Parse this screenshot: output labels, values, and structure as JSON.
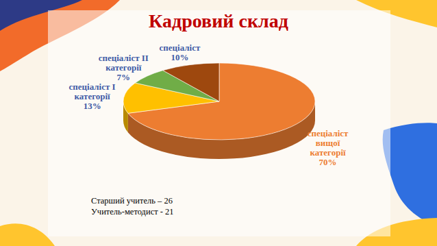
{
  "chart_data": {
    "type": "pie",
    "title": "Кадровий склад",
    "categories": [
      "спеціаліст вищої категорії",
      "спеціаліст І категорії",
      "спеціаліст ІІ категорії",
      "спеціаліст"
    ],
    "values": [
      70,
      13,
      7,
      10
    ],
    "value_labels": [
      "70%",
      "13%",
      "7%",
      "10%"
    ],
    "colors": [
      "#ED7D31",
      "#FFC000",
      "#70AD47",
      "#9E480E"
    ],
    "data_labels": true,
    "annotations": [
      "Старший учитель – 26",
      "Учитель-методист - 21"
    ]
  }
}
